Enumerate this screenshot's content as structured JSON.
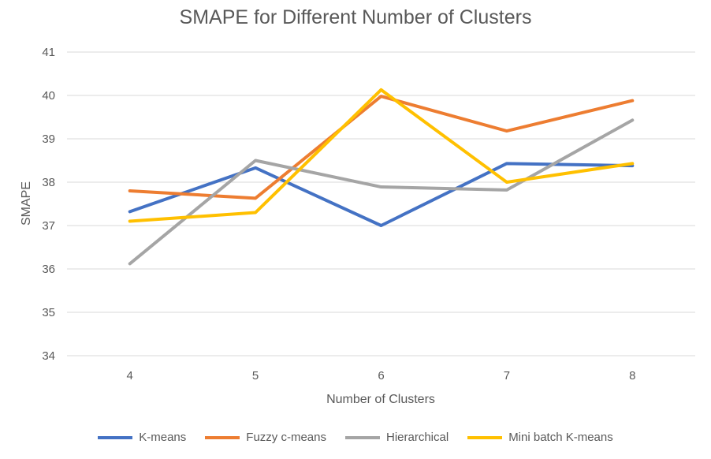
{
  "chart_data": {
    "type": "line",
    "title": "SMAPE for Different Number of Clusters",
    "xlabel": "Number of Clusters",
    "ylabel": "SMAPE",
    "categories": [
      "4",
      "5",
      "6",
      "7",
      "8"
    ],
    "ylim": [
      34,
      41
    ],
    "yticks": [
      "34",
      "35",
      "36",
      "37",
      "38",
      "39",
      "40",
      "41"
    ],
    "grid": true,
    "legend_position": "bottom",
    "series": [
      {
        "name": "K-means",
        "color": "#4472C4",
        "values": [
          37.32,
          38.33,
          37.0,
          38.43,
          38.38
        ]
      },
      {
        "name": "Fuzzy c-means",
        "color": "#ED7D31",
        "values": [
          37.8,
          37.63,
          39.98,
          39.18,
          39.88
        ]
      },
      {
        "name": "Hierarchical",
        "color": "#A5A5A5",
        "values": [
          36.12,
          38.5,
          37.89,
          37.82,
          39.43
        ]
      },
      {
        "name": "Mini batch K-means",
        "color": "#FFC000",
        "values": [
          37.1,
          37.3,
          40.13,
          38.0,
          38.43
        ]
      }
    ]
  }
}
